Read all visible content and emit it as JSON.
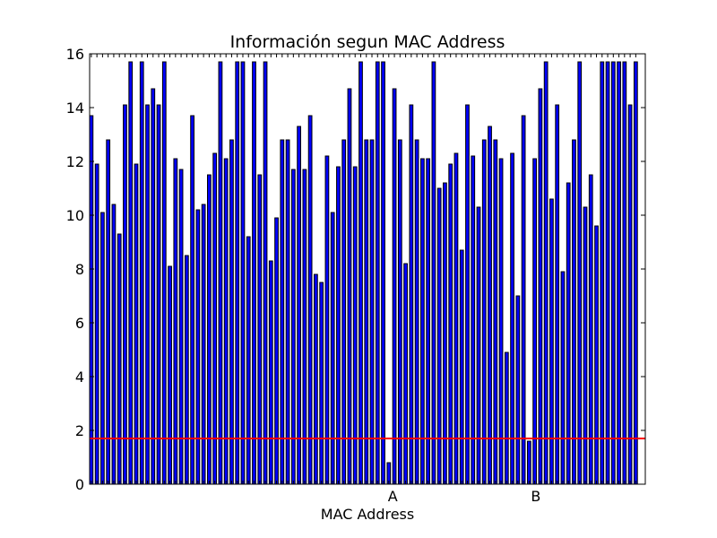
{
  "chart_data": {
    "type": "bar",
    "title": "Información segun MAC Address",
    "xlabel": "MAC Address",
    "ylabel": "",
    "ylim": [
      0,
      16
    ],
    "yticks": [
      0,
      2,
      4,
      6,
      8,
      10,
      12,
      14,
      16
    ],
    "xlim": [
      0,
      99
    ],
    "x_tick_labels": [
      {
        "label": "A",
        "x": 54
      },
      {
        "label": "B",
        "x": 79.5
      }
    ],
    "grid": false,
    "bar_color": "#0000ff",
    "bar_edge_color": "#000000",
    "reference_line": {
      "y": 1.7,
      "color": "#ff0000"
    },
    "values": [
      13.7,
      11.9,
      10.1,
      12.8,
      10.4,
      9.3,
      14.1,
      15.7,
      11.9,
      15.7,
      14.1,
      14.7,
      14.1,
      15.7,
      8.1,
      12.1,
      11.7,
      8.5,
      13.7,
      10.2,
      10.4,
      11.5,
      12.3,
      15.7,
      12.1,
      12.8,
      15.7,
      15.7,
      9.2,
      15.7,
      11.5,
      15.7,
      8.3,
      9.9,
      12.8,
      12.8,
      11.7,
      13.3,
      11.7,
      13.7,
      7.8,
      7.5,
      12.2,
      10.1,
      11.8,
      12.8,
      14.7,
      11.8,
      15.7,
      12.8,
      12.8,
      15.7,
      15.7,
      0.8,
      14.7,
      12.8,
      8.2,
      14.1,
      12.8,
      12.1,
      12.1,
      15.7,
      11.0,
      11.2,
      11.9,
      12.3,
      8.7,
      14.1,
      12.2,
      10.3,
      12.8,
      13.3,
      12.8,
      12.1,
      4.9,
      12.3,
      7.0,
      13.7,
      1.6,
      12.1,
      14.7,
      15.7,
      10.6,
      14.1,
      7.9,
      11.2,
      12.8,
      15.7,
      10.3,
      11.5,
      9.6,
      15.7,
      15.7,
      15.7,
      15.7,
      15.7,
      14.1,
      15.7
    ]
  }
}
